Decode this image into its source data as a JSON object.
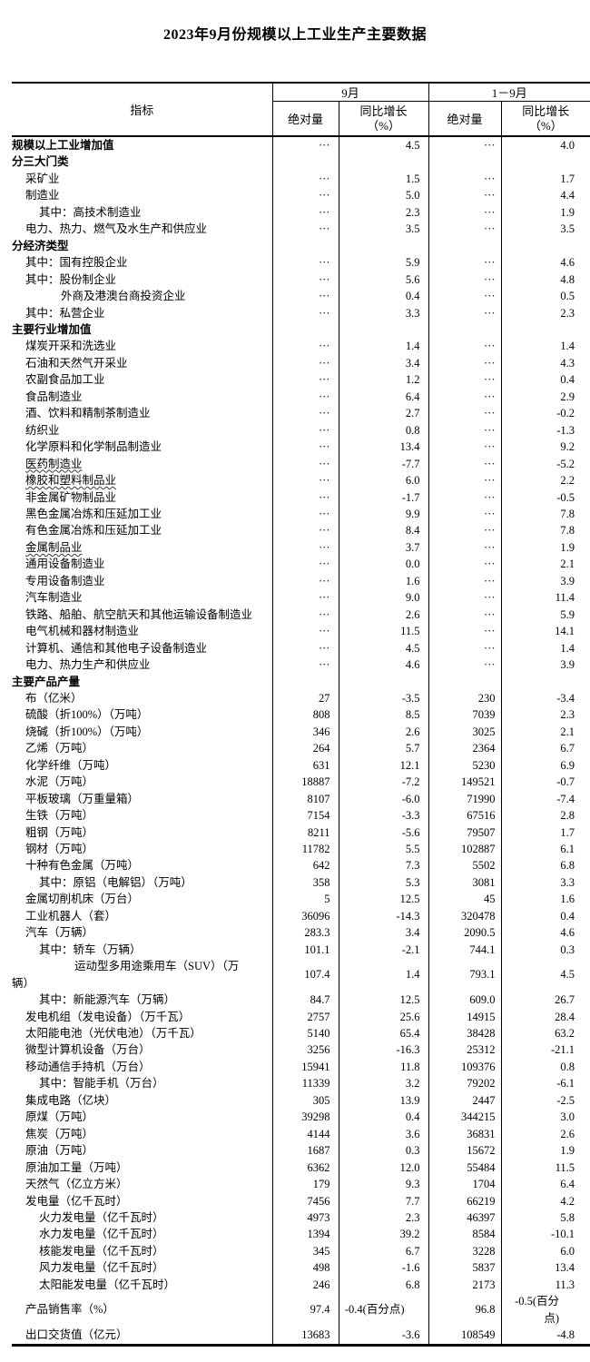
{
  "title": "2023年9月份规模以上工业生产主要数据",
  "table": {
    "header": {
      "indicator": "指标",
      "group_september": "9月",
      "group_jan_sep": "1－9月",
      "absolute_label": "绝对量",
      "yoy_label": "同比增长\n（%）"
    },
    "dots": "···",
    "rows": [
      {
        "label": "规模以上工业增加值",
        "level": 0,
        "bold": true,
        "values": [
          "···",
          "4.5",
          "···",
          "4.0"
        ]
      },
      {
        "label": "分三大门类",
        "level": 0,
        "bold": true,
        "values": [
          "",
          "",
          "",
          ""
        ]
      },
      {
        "label": "采矿业",
        "level": 1,
        "values": [
          "···",
          "1.5",
          "···",
          "1.7"
        ]
      },
      {
        "label": "制造业",
        "level": 1,
        "values": [
          "···",
          "5.0",
          "···",
          "4.4"
        ]
      },
      {
        "label": "其中：高技术制造业",
        "level": 2,
        "values": [
          "···",
          "2.3",
          "···",
          "1.9"
        ]
      },
      {
        "label": "电力、热力、燃气及水生产和供应业",
        "level": 1,
        "values": [
          "···",
          "3.5",
          "···",
          "3.5"
        ]
      },
      {
        "label": "分经济类型",
        "level": 0,
        "bold": true,
        "values": [
          "",
          "",
          "",
          ""
        ]
      },
      {
        "label": "其中：国有控股企业",
        "level": 1,
        "values": [
          "···",
          "5.9",
          "···",
          "4.6"
        ]
      },
      {
        "label": "其中：股份制企业",
        "level": 1,
        "values": [
          "···",
          "5.6",
          "···",
          "4.8"
        ]
      },
      {
        "label": "外商及港澳台商投资企业",
        "level": 3,
        "values": [
          "···",
          "0.4",
          "···",
          "0.5"
        ]
      },
      {
        "label": "其中：私营企业",
        "level": 1,
        "values": [
          "···",
          "3.3",
          "···",
          "2.3"
        ]
      },
      {
        "label": "主要行业增加值",
        "level": 0,
        "bold": true,
        "values": [
          "",
          "",
          "",
          ""
        ]
      },
      {
        "label": "煤炭开采和洗选业",
        "level": 1,
        "values": [
          "···",
          "1.4",
          "···",
          "1.4"
        ]
      },
      {
        "label": "石油和天然气开采业",
        "level": 1,
        "values": [
          "···",
          "3.4",
          "···",
          "4.3"
        ]
      },
      {
        "label": "农副食品加工业",
        "level": 1,
        "values": [
          "···",
          "1.2",
          "···",
          "0.4"
        ]
      },
      {
        "label": "食品制造业",
        "level": 1,
        "values": [
          "···",
          "6.4",
          "···",
          "2.9"
        ]
      },
      {
        "label": "酒、饮料和精制茶制造业",
        "level": 1,
        "values": [
          "···",
          "2.7",
          "···",
          "-0.2"
        ]
      },
      {
        "label": "纺织业",
        "level": 1,
        "values": [
          "···",
          "0.8",
          "···",
          "-1.3"
        ]
      },
      {
        "label": "化学原料和化学制品制造业",
        "level": 1,
        "values": [
          "···",
          "13.4",
          "···",
          "9.2"
        ]
      },
      {
        "label": "医药制造业",
        "level": 1,
        "wavy": true,
        "values": [
          "···",
          "-7.7",
          "···",
          "-5.2"
        ]
      },
      {
        "label": "橡胶和塑料制品业",
        "level": 1,
        "wavy": true,
        "values": [
          "···",
          "6.0",
          "···",
          "2.2"
        ]
      },
      {
        "label": "非金属矿物制品业",
        "level": 1,
        "values": [
          "···",
          "-1.7",
          "···",
          "-0.5"
        ]
      },
      {
        "label": "黑色金属冶炼和压延加工业",
        "level": 1,
        "values": [
          "···",
          "9.9",
          "···",
          "7.8"
        ]
      },
      {
        "label": "有色金属冶炼和压延加工业",
        "level": 1,
        "values": [
          "···",
          "8.4",
          "···",
          "7.8"
        ]
      },
      {
        "label": "金属制品业",
        "level": 1,
        "wavy": true,
        "values": [
          "···",
          "3.7",
          "···",
          "1.9"
        ]
      },
      {
        "label": "通用设备制造业",
        "level": 1,
        "values": [
          "···",
          "0.0",
          "···",
          "2.1"
        ]
      },
      {
        "label": "专用设备制造业",
        "level": 1,
        "values": [
          "···",
          "1.6",
          "···",
          "3.9"
        ]
      },
      {
        "label": "汽车制造业",
        "level": 1,
        "values": [
          "···",
          "9.0",
          "···",
          "11.4"
        ]
      },
      {
        "label": "铁路、船舶、航空航天和其他运输设备制造业",
        "level": 1,
        "values": [
          "···",
          "2.6",
          "···",
          "5.9"
        ]
      },
      {
        "label": "电气机械和器材制造业",
        "level": 1,
        "values": [
          "···",
          "11.5",
          "···",
          "14.1"
        ]
      },
      {
        "label": "计算机、通信和其他电子设备制造业",
        "level": 1,
        "values": [
          "···",
          "4.5",
          "···",
          "1.4"
        ]
      },
      {
        "label": "电力、热力生产和供应业",
        "level": 1,
        "values": [
          "···",
          "4.6",
          "···",
          "3.9"
        ]
      },
      {
        "label": "主要产品产量",
        "level": 0,
        "bold": true,
        "values": [
          "",
          "",
          "",
          ""
        ]
      },
      {
        "label": "布（亿米）",
        "level": 1,
        "values": [
          "27",
          "-3.5",
          "230",
          "-3.4"
        ]
      },
      {
        "label": "硫酸（折100%）（万吨）",
        "level": 1,
        "values": [
          "808",
          "8.5",
          "7039",
          "2.3"
        ]
      },
      {
        "label": "烧碱（折100%）（万吨）",
        "level": 1,
        "values": [
          "346",
          "2.6",
          "3025",
          "2.1"
        ]
      },
      {
        "label": "乙烯（万吨）",
        "level": 1,
        "values": [
          "264",
          "5.7",
          "2364",
          "6.7"
        ]
      },
      {
        "label": "化学纤维（万吨）",
        "level": 1,
        "values": [
          "631",
          "12.1",
          "5230",
          "6.9"
        ]
      },
      {
        "label": "水泥（万吨）",
        "level": 1,
        "values": [
          "18887",
          "-7.2",
          "149521",
          "-0.7"
        ]
      },
      {
        "label": "平板玻璃（万重量箱）",
        "level": 1,
        "values": [
          "8107",
          "-6.0",
          "71990",
          "-7.4"
        ]
      },
      {
        "label": "生铁（万吨）",
        "level": 1,
        "values": [
          "7154",
          "-3.3",
          "67516",
          "2.8"
        ]
      },
      {
        "label": "粗钢（万吨）",
        "level": 1,
        "values": [
          "8211",
          "-5.6",
          "79507",
          "1.7"
        ]
      },
      {
        "label": "钢材（万吨）",
        "level": 1,
        "values": [
          "11782",
          "5.5",
          "102887",
          "6.1"
        ]
      },
      {
        "label": "十种有色金属（万吨）",
        "level": 1,
        "values": [
          "642",
          "7.3",
          "5502",
          "6.8"
        ]
      },
      {
        "label": "其中：原铝（电解铝）（万吨）",
        "level": 2,
        "values": [
          "358",
          "5.3",
          "3081",
          "3.3"
        ]
      },
      {
        "label": "金属切削机床（万台）",
        "level": 1,
        "values": [
          "5",
          "12.5",
          "45",
          "1.6"
        ]
      },
      {
        "label": "工业机器人（套）",
        "level": 1,
        "values": [
          "36096",
          "-14.3",
          "320478",
          "0.4"
        ]
      },
      {
        "label": "汽车（万辆）",
        "level": 1,
        "values": [
          "283.3",
          "3.4",
          "2090.5",
          "4.6"
        ]
      },
      {
        "label": "其中：轿车（万辆）",
        "level": 2,
        "values": [
          "101.1",
          "-2.1",
          "744.1",
          "0.3"
        ]
      },
      {
        "label": "运动型多用途乘用车（SUV）（万",
        "label2": "辆）",
        "level": 4,
        "values": [
          "107.4",
          "1.4",
          "793.1",
          "4.5"
        ]
      },
      {
        "label": "其中：新能源汽车（万辆）",
        "level": 2,
        "values": [
          "84.7",
          "12.5",
          "609.0",
          "26.7"
        ]
      },
      {
        "label": "发电机组（发电设备）（万千瓦）",
        "level": 1,
        "values": [
          "2757",
          "25.6",
          "14915",
          "28.4"
        ]
      },
      {
        "label": "太阳能电池（光伏电池）（万千瓦）",
        "level": 1,
        "values": [
          "5140",
          "65.4",
          "38428",
          "63.2"
        ]
      },
      {
        "label": "微型计算机设备（万台）",
        "level": 1,
        "values": [
          "3256",
          "-16.3",
          "25312",
          "-21.1"
        ]
      },
      {
        "label": "移动通信手持机（万台）",
        "level": 1,
        "values": [
          "15941",
          "11.8",
          "109376",
          "0.8"
        ]
      },
      {
        "label": "其中：智能手机（万台）",
        "level": 2,
        "values": [
          "11339",
          "3.2",
          "79202",
          "-6.1"
        ]
      },
      {
        "label": "集成电路（亿块）",
        "level": 1,
        "values": [
          "305",
          "13.9",
          "2447",
          "-2.5"
        ]
      },
      {
        "label": "原煤（万吨）",
        "level": 1,
        "values": [
          "39298",
          "0.4",
          "344215",
          "3.0"
        ]
      },
      {
        "label": "焦炭（万吨）",
        "level": 1,
        "values": [
          "4144",
          "3.6",
          "36831",
          "2.6"
        ]
      },
      {
        "label": "原油（万吨）",
        "level": 1,
        "values": [
          "1687",
          "0.3",
          "15672",
          "1.9"
        ]
      },
      {
        "label": "原油加工量（万吨）",
        "level": 1,
        "values": [
          "6362",
          "12.0",
          "55484",
          "11.5"
        ]
      },
      {
        "label": "天然气（亿立方米）",
        "level": 1,
        "values": [
          "179",
          "9.3",
          "1704",
          "6.4"
        ]
      },
      {
        "label": "发电量（亿千瓦时）",
        "level": 1,
        "values": [
          "7456",
          "7.7",
          "66219",
          "4.2"
        ]
      },
      {
        "label": "火力发电量（亿千瓦时）",
        "level": 2,
        "values": [
          "4973",
          "2.3",
          "46397",
          "5.8"
        ]
      },
      {
        "label": "水力发电量（亿千瓦时）",
        "level": 2,
        "values": [
          "1394",
          "39.2",
          "8584",
          "-10.1"
        ]
      },
      {
        "label": "核能发电量（亿千瓦时）",
        "level": 2,
        "values": [
          "345",
          "6.7",
          "3228",
          "6.0"
        ]
      },
      {
        "label": "风力发电量（亿千瓦时）",
        "level": 2,
        "values": [
          "498",
          "-1.6",
          "5837",
          "13.4"
        ]
      },
      {
        "label": "太阳能发电量（亿千瓦时）",
        "level": 2,
        "values": [
          "246",
          "6.8",
          "2173",
          "11.3"
        ]
      },
      {
        "label": "产品销售率（%）",
        "level": 1,
        "values": [
          "97.4",
          "-0.4(百分点)",
          "96.8",
          "-0.5(百分点)"
        ]
      },
      {
        "label": "出口交货值（亿元）",
        "level": 1,
        "values": [
          "13683",
          "-3.6",
          "108549",
          "-4.8"
        ]
      }
    ]
  }
}
